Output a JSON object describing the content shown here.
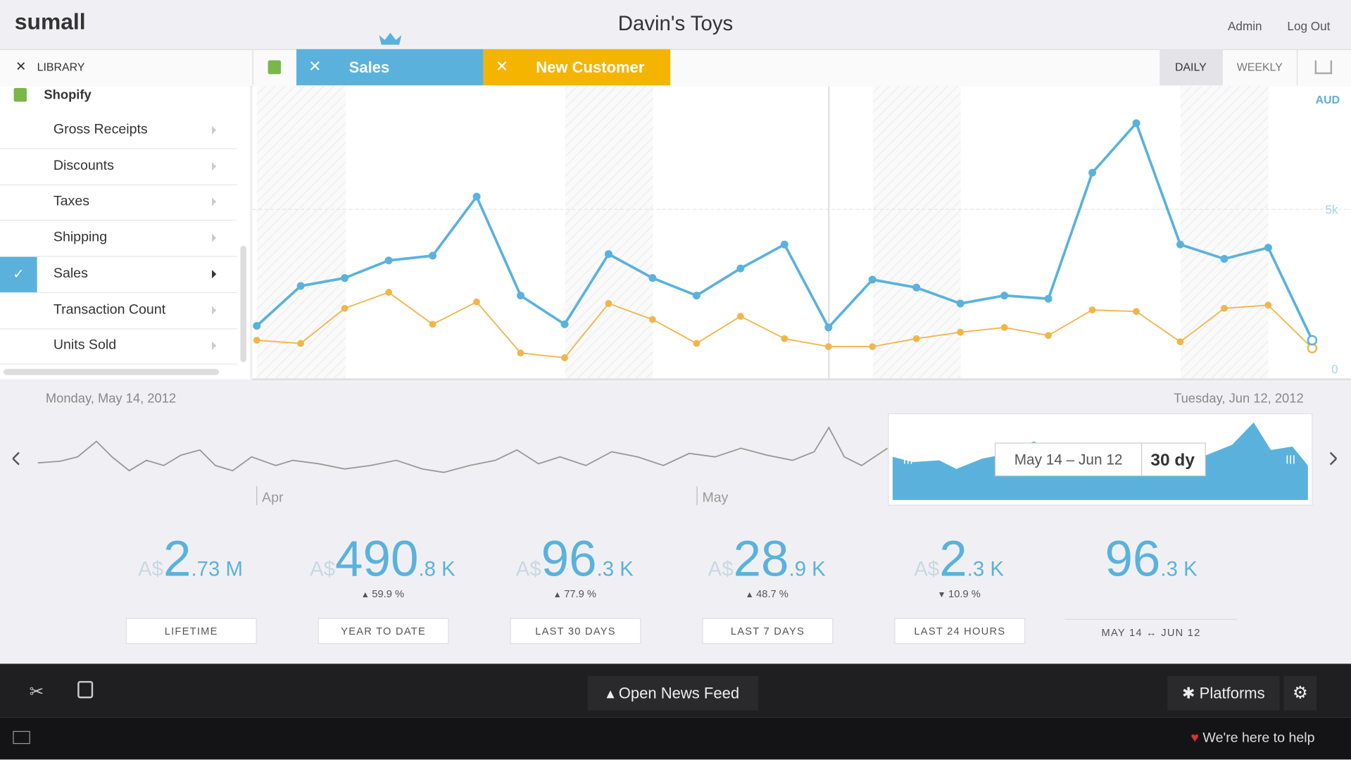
{
  "header": {
    "logo": "sumall",
    "title": "Davin's Toys",
    "links": [
      "Admin",
      "Log Out"
    ]
  },
  "library": {
    "close_label": "LIBRARY",
    "source": "Shopify",
    "items": [
      "Gross Receipts",
      "Discounts",
      "Taxes",
      "Shipping",
      "Sales",
      "Transaction Count",
      "Units Sold"
    ],
    "selected": 4
  },
  "tabs": [
    "Sales",
    "New Customer"
  ],
  "views": [
    "DAILY",
    "WEEKLY"
  ],
  "chart_data": {
    "type": "line",
    "unit_label": "AUD",
    "series": [
      {
        "name": "Sales",
        "color": "#5ab2dc",
        "values": [
          1350,
          2600,
          2850,
          3400,
          3550,
          5400,
          2300,
          1400,
          3600,
          2850,
          2300,
          3150,
          3900,
          1300,
          2800,
          2550,
          2050,
          2300,
          2200,
          6150,
          7700,
          3900,
          3450,
          3800,
          900
        ]
      },
      {
        "name": "New Customer",
        "color": "#f2b54a",
        "values": [
          900,
          800,
          1900,
          2400,
          1400,
          2100,
          500,
          350,
          2050,
          1550,
          800,
          1650,
          950,
          700,
          700,
          950,
          1150,
          1300,
          1050,
          1850,
          1800,
          850,
          1900,
          2000,
          650
        ]
      }
    ],
    "ylim": [
      0,
      8860
    ],
    "yticks": [
      0,
      {
        "value": 5000,
        "label": "5k"
      }
    ],
    "x_start_label": "Monday, May 14, 2012",
    "x_end_label": "Tuesday, Jun 12, 2012"
  },
  "overview": {
    "months": [
      "Apr",
      "May"
    ],
    "range": "May 14 – Jun 12",
    "span": "30 dy"
  },
  "stats": [
    {
      "currency": "A$",
      "main": "2",
      "suffix": ".73 M",
      "label": "LIFETIME"
    },
    {
      "currency": "A$",
      "main": "490",
      "suffix": ".8 K",
      "change": "59.9 %",
      "direction": "up",
      "label": "YEAR TO DATE"
    },
    {
      "currency": "A$",
      "main": "96",
      "suffix": ".3 K",
      "change": "77.9 %",
      "direction": "up",
      "label": "LAST 30 DAYS"
    },
    {
      "currency": "A$",
      "main": "28",
      "suffix": ".9 K",
      "change": "48.7 %",
      "direction": "up",
      "label": "LAST 7 DAYS"
    },
    {
      "currency": "A$",
      "main": "2",
      "suffix": ".3 K",
      "change": "10.9 %",
      "direction": "down",
      "label": "LAST 24 HOURS"
    },
    {
      "main": "96",
      "suffix": ".3 K",
      "range_start": "MAY 14",
      "range_end": "JUN 12"
    }
  ],
  "footer": {
    "news": "Open News Feed",
    "platforms": "Platforms",
    "help": "We're here to help"
  }
}
